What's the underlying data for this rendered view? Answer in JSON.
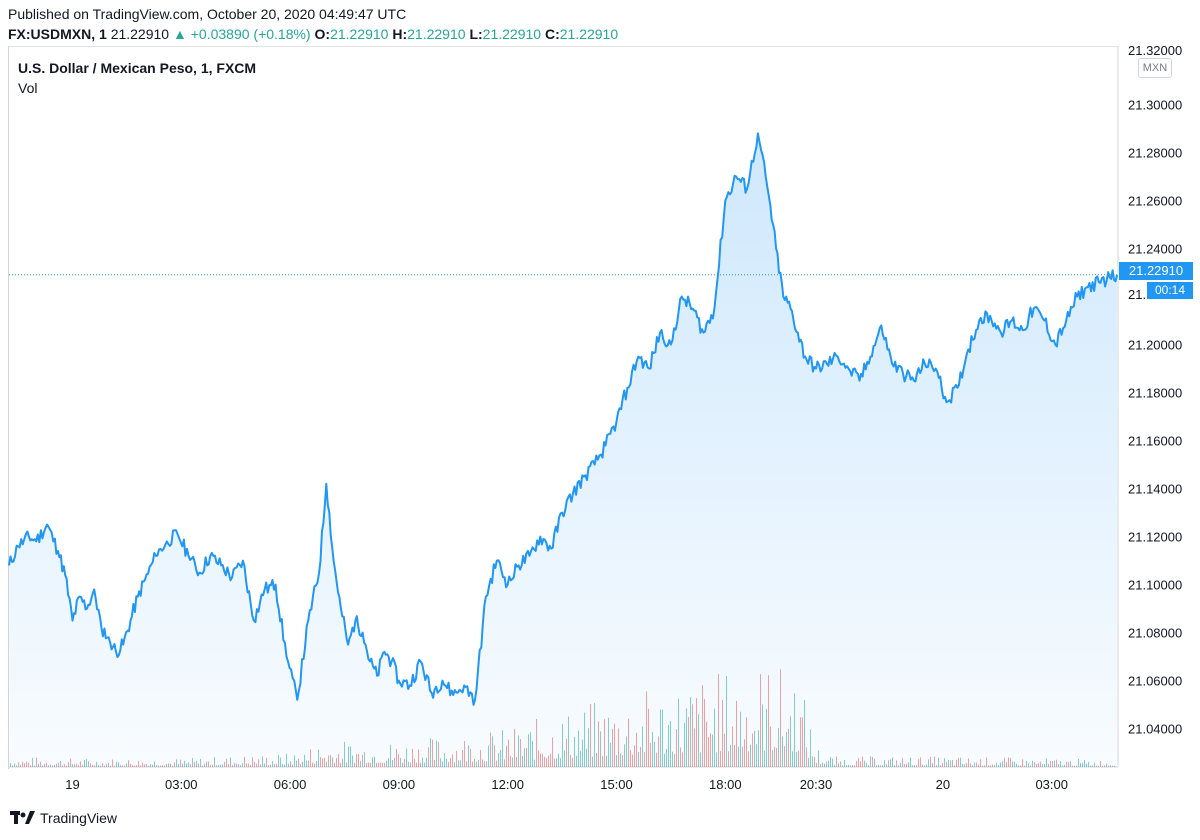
{
  "header": {
    "published": "Published on TradingView.com, October 20, 2020 04:49:47 UTC",
    "symbol": "FX:USDMXN, 1",
    "last": "21.22910",
    "change": "▲ +0.03890 (+0.18%)",
    "o_label": "O:",
    "o_val": "21.22910",
    "h_label": "H:",
    "h_val": "21.22910",
    "l_label": "L:",
    "l_val": "21.22910",
    "c_label": "C:",
    "c_val": "21.22910"
  },
  "legend": {
    "title": "U.S. Dollar / Mexican Peso, 1, FXCM",
    "vol": "Vol"
  },
  "axis": {
    "currency": "MXN",
    "price_tag": "21.22910",
    "time_tag": "00:14",
    "partial_label": "21.",
    "top_partial": "21.32000"
  },
  "footer": {
    "brand": "TradingView"
  },
  "colors": {
    "line": "#2196f3",
    "up": "#26a69a",
    "down": "#ef5350"
  },
  "chart_data": {
    "type": "area",
    "title": "U.S. Dollar / Mexican Peso, 1, FXCM",
    "ylabel": "MXN",
    "ylim": [
      21.024,
      21.324
    ],
    "y_ticks": [
      "21.30000",
      "21.28000",
      "21.26000",
      "21.24000",
      "21.20000",
      "21.18000",
      "21.16000",
      "21.14000",
      "21.12000",
      "21.10000",
      "21.08000",
      "21.06000",
      "21.04000"
    ],
    "y_tick_values": [
      21.3,
      21.28,
      21.26,
      21.24,
      21.2,
      21.18,
      21.16,
      21.14,
      21.12,
      21.1,
      21.08,
      21.06,
      21.04
    ],
    "x_labels": [
      "19",
      "03:00",
      "06:00",
      "09:00",
      "12:00",
      "15:00",
      "18:00",
      "20:30",
      "20",
      "03:00"
    ],
    "x_label_hours": [
      0,
      3,
      6,
      9,
      12,
      15,
      18,
      20.5,
      24,
      27
    ],
    "x_range_hours": [
      -1.75,
      28.8
    ],
    "last_price": 21.2291,
    "series": [
      {
        "name": "USDMXN",
        "x_hours": [
          -1.75,
          -1.5,
          -1.2,
          -1.0,
          -0.7,
          -0.4,
          -0.2,
          0,
          0.2,
          0.4,
          0.6,
          0.8,
          1.0,
          1.2,
          1.4,
          1.6,
          1.8,
          2.0,
          2.3,
          2.6,
          2.9,
          3.2,
          3.5,
          3.8,
          4.1,
          4.4,
          4.7,
          5.0,
          5.3,
          5.6,
          5.9,
          6.2,
          6.5,
          6.8,
          7.0,
          7.2,
          7.4,
          7.6,
          7.8,
          8.0,
          8.2,
          8.4,
          8.6,
          8.8,
          9.0,
          9.3,
          9.6,
          9.9,
          10.2,
          10.5,
          10.8,
          11.1,
          11.4,
          11.7,
          12.0,
          12.3,
          12.6,
          12.9,
          13.2,
          13.5,
          13.8,
          14.1,
          14.4,
          14.7,
          15.0,
          15.3,
          15.6,
          15.9,
          16.2,
          16.5,
          16.8,
          17.1,
          17.4,
          17.7,
          18.0,
          18.3,
          18.6,
          18.9,
          19.2,
          19.4,
          19.6,
          19.8,
          20.0,
          20.2,
          20.5,
          20.8,
          21.1,
          21.4,
          21.7,
          22.0,
          22.3,
          22.6,
          22.9,
          23.2,
          23.5,
          23.8,
          24.1,
          24.4,
          24.7,
          25.0,
          25.3,
          25.6,
          25.9,
          26.2,
          26.5,
          26.8,
          27.1,
          27.4,
          27.7,
          28.0,
          28.3,
          28.6,
          28.8
        ],
        "values": [
          21.108,
          21.116,
          21.12,
          21.118,
          21.125,
          21.114,
          21.104,
          21.085,
          21.095,
          21.09,
          21.098,
          21.082,
          21.078,
          21.072,
          21.075,
          21.085,
          21.095,
          21.102,
          21.112,
          21.118,
          21.121,
          21.112,
          21.105,
          21.112,
          21.108,
          21.103,
          21.11,
          21.085,
          21.098,
          21.1,
          21.07,
          21.052,
          21.085,
          21.105,
          21.142,
          21.11,
          21.09,
          21.075,
          21.085,
          21.08,
          21.068,
          21.062,
          21.072,
          21.068,
          21.06,
          21.058,
          21.068,
          21.055,
          21.06,
          21.054,
          21.058,
          21.052,
          21.095,
          21.11,
          21.1,
          21.108,
          21.112,
          21.12,
          21.115,
          21.13,
          21.138,
          21.145,
          21.15,
          21.158,
          21.168,
          21.182,
          21.195,
          21.19,
          21.205,
          21.2,
          21.22,
          21.215,
          21.205,
          21.215,
          21.26,
          21.27,
          21.265,
          21.288,
          21.262,
          21.24,
          21.22,
          21.215,
          21.205,
          21.195,
          21.19,
          21.192,
          21.195,
          21.19,
          21.185,
          21.195,
          21.208,
          21.192,
          21.188,
          21.185,
          21.192,
          21.19,
          21.176,
          21.182,
          21.198,
          21.21,
          21.212,
          21.205,
          21.21,
          21.206,
          21.215,
          21.21,
          21.2,
          21.21,
          21.22,
          21.224,
          21.226,
          21.228,
          21.229
        ]
      }
    ],
    "volume": {
      "note": "1-minute volume bars, alternating green/red, heights relative (0-1)",
      "profile_hours": [
        -1.75,
        0,
        3,
        6,
        7,
        9,
        12,
        14,
        16,
        18,
        19,
        20,
        20.5,
        21,
        24,
        27,
        28.8
      ],
      "profile_levels": [
        0.06,
        0.05,
        0.05,
        0.08,
        0.15,
        0.15,
        0.22,
        0.35,
        0.45,
        0.55,
        0.6,
        0.55,
        0.12,
        0.06,
        0.06,
        0.05,
        0.04
      ]
    }
  }
}
